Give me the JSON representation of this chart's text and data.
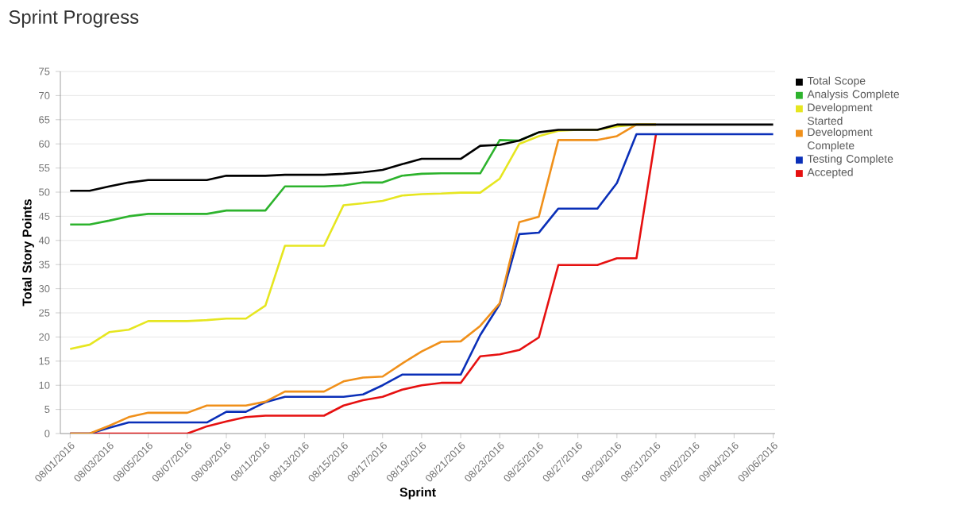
{
  "chart_data": {
    "type": "line",
    "title": "Sprint Progress",
    "xlabel": "Sprint",
    "ylabel": "Total Story Points",
    "categories": [
      "08/01/2016",
      null,
      "08/03/2016",
      null,
      "08/05/2016",
      null,
      "08/07/2016",
      null,
      "08/09/2016",
      null,
      "08/11/2016",
      null,
      "08/13/2016",
      null,
      "08/15/2016",
      null,
      "08/17/2016",
      null,
      "08/19/2016",
      null,
      "08/21/2016",
      null,
      "08/23/2016",
      null,
      "08/25/2016",
      null,
      "08/27/2016",
      null,
      "08/29/2016",
      null,
      "08/31/2016",
      null,
      "09/02/2016",
      null,
      "09/04/2016",
      null,
      "09/06/2016"
    ],
    "series": [
      {
        "name": "Total Scope",
        "color": "#000000",
        "values": [
          50.3,
          50.3,
          51.2,
          52,
          52.5,
          52.5,
          52.5,
          52.5,
          53.4,
          53.4,
          53.4,
          53.6,
          53.6,
          53.6,
          53.8,
          54.1,
          54.6,
          55.8,
          56.9,
          56.9,
          56.9,
          59.6,
          59.8,
          60.7,
          62.4,
          62.9,
          62.9,
          62.9,
          64,
          64,
          64,
          64,
          64,
          64,
          64,
          64,
          64
        ]
      },
      {
        "name": "Analysis Complete",
        "color": "#2db32d",
        "values": [
          43.3,
          43.3,
          44.1,
          45,
          45.5,
          45.5,
          45.5,
          45.5,
          46.2,
          46.2,
          46.2,
          51.2,
          51.2,
          51.2,
          51.4,
          52,
          52,
          53.4,
          53.8,
          53.9,
          53.9,
          53.9,
          60.8,
          60.7,
          62.4,
          null,
          null,
          null,
          null,
          null,
          null,
          null,
          null,
          null,
          null,
          null,
          null
        ]
      },
      {
        "name": "Development Started",
        "color": "#e6e620",
        "values": [
          17.5,
          18.4,
          21,
          21.5,
          23.3,
          23.3,
          23.3,
          23.5,
          23.8,
          23.8,
          26.5,
          38.9,
          38.9,
          38.9,
          47.3,
          47.7,
          48.2,
          49.3,
          49.6,
          49.7,
          49.9,
          49.9,
          52.8,
          60,
          61.6,
          62.7,
          62.9,
          62.9,
          63.6,
          64,
          64,
          null,
          null,
          null,
          null,
          null,
          null
        ]
      },
      {
        "name": "Development Complete",
        "color": "#f0901a",
        "values": [
          0,
          0,
          1.6,
          3.4,
          4.3,
          4.3,
          4.3,
          5.8,
          5.8,
          5.8,
          6.6,
          8.7,
          8.7,
          8.7,
          10.8,
          11.6,
          11.8,
          14.5,
          17,
          19,
          19.1,
          22.3,
          27,
          43.8,
          44.9,
          60.8,
          60.8,
          60.8,
          61.6,
          64,
          64,
          null,
          null,
          null,
          null,
          null,
          null
        ]
      },
      {
        "name": "Testing Complete",
        "color": "#0a2fb8",
        "values": [
          0,
          0,
          1.2,
          2.3,
          2.3,
          2.3,
          2.3,
          2.3,
          4.5,
          4.5,
          6.5,
          7.6,
          7.6,
          7.6,
          7.6,
          8.1,
          10,
          12.2,
          12.2,
          12.2,
          12.2,
          20.4,
          26.8,
          41.3,
          41.6,
          46.6,
          46.6,
          46.6,
          51.9,
          62,
          62,
          62,
          62,
          62,
          62,
          62,
          62
        ]
      },
      {
        "name": "Accepted",
        "color": "#e61010",
        "values": [
          0,
          0,
          0,
          0,
          0,
          0,
          0,
          1.5,
          2.5,
          3.4,
          3.7,
          3.7,
          3.7,
          3.7,
          5.8,
          6.9,
          7.6,
          9.1,
          10,
          10.5,
          10.5,
          16,
          16.4,
          17.3,
          19.9,
          34.9,
          34.9,
          34.9,
          36.3,
          36.3,
          62,
          null,
          null,
          null,
          null,
          null,
          null
        ]
      }
    ],
    "ylim": [
      0,
      75
    ],
    "yticks": [
      0,
      5,
      10,
      15,
      20,
      25,
      30,
      35,
      40,
      45,
      50,
      55,
      60,
      65,
      70,
      75
    ],
    "grid": "y",
    "legend": "right"
  }
}
